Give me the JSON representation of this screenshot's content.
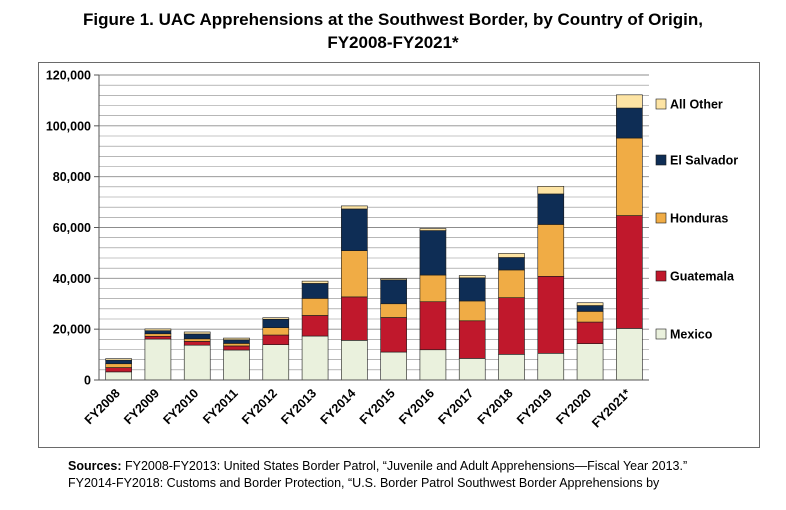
{
  "figure": {
    "title_line1": "Figure 1. UAC Apprehensions at the Southwest Border, by Country of Origin,",
    "title_line2": "FY2008-FY2021*"
  },
  "sources": {
    "label": "Sources:",
    "line1": "FY2008-FY2013: United States Border Patrol, “Juvenile and Adult Apprehensions—Fiscal Year 2013.”",
    "line2": "FY2014-FY2018: Customs and Border Protection, “U.S. Border Patrol Southwest Border Apprehensions by"
  },
  "chart_data": {
    "type": "bar",
    "stacked": true,
    "title": "",
    "xlabel": "",
    "ylabel": "",
    "ylim": [
      0,
      120000
    ],
    "yticks": [
      0,
      20000,
      40000,
      60000,
      80000,
      100000,
      120000
    ],
    "ytick_labels": [
      "0",
      "20,000",
      "40,000",
      "60,000",
      "80,000",
      "100,000",
      "120,000"
    ],
    "grid": true,
    "legend_position": "right",
    "categories": [
      "FY2008",
      "FY2009",
      "FY2010",
      "FY2011",
      "FY2012",
      "FY2013",
      "FY2014",
      "FY2015",
      "FY2016",
      "FY2017",
      "FY2018",
      "FY2019",
      "FY2020",
      "FY2021*"
    ],
    "series": [
      {
        "name": "Mexico",
        "color": "#eaf1dd",
        "values": [
          3200,
          16100,
          13700,
          11800,
          13900,
          17300,
          15600,
          11000,
          11900,
          8500,
          10100,
          10500,
          14300,
          20300
        ]
      },
      {
        "name": "Guatemala",
        "color": "#c0182c",
        "values": [
          1700,
          1100,
          1500,
          1600,
          3800,
          8100,
          17100,
          13600,
          18900,
          14800,
          22300,
          30300,
          8500,
          44400
        ]
      },
      {
        "name": "Honduras",
        "color": "#f0ac45",
        "values": [
          1500,
          1000,
          1000,
          1000,
          2900,
          6700,
          18200,
          5400,
          10500,
          7800,
          10900,
          20400,
          4200,
          30500
        ]
      },
      {
        "name": "El Salvador",
        "color": "#0e2d55",
        "values": [
          1400,
          1200,
          1900,
          1400,
          3300,
          5900,
          16400,
          9400,
          17500,
          9100,
          4900,
          12000,
          2300,
          11800
        ]
      },
      {
        "name": "All Other",
        "color": "#fde4a4",
        "values": [
          600,
          700,
          800,
          700,
          600,
          900,
          1200,
          500,
          800,
          900,
          1600,
          3000,
          1100,
          5200
        ]
      }
    ]
  }
}
